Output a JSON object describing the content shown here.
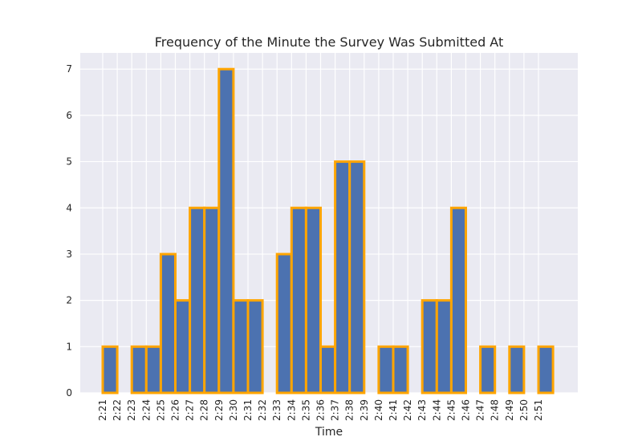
{
  "chart_data": {
    "type": "bar",
    "title": "Frequency of the Minute the Survey Was Submitted At",
    "xlabel": "Time",
    "ylabel": "",
    "categories": [
      "2:21",
      "2:22",
      "2:23",
      "2:24",
      "2:25",
      "2:26",
      "2:27",
      "2:28",
      "2:29",
      "2:30",
      "2:31",
      "2:32",
      "2:33",
      "2:34",
      "2:35",
      "2:36",
      "2:37",
      "2:38",
      "2:39",
      "2:40",
      "2:41",
      "2:42",
      "2:43",
      "2:44",
      "2:45",
      "2:46",
      "2:47",
      "2:48",
      "2:49",
      "2:50",
      "2:51"
    ],
    "values": [
      1,
      0,
      1,
      1,
      3,
      2,
      4,
      4,
      7,
      2,
      2,
      0,
      3,
      4,
      4,
      1,
      5,
      5,
      0,
      1,
      1,
      0,
      2,
      2,
      4,
      0,
      1,
      0,
      1,
      0,
      1
    ],
    "ylim": [
      0,
      7.35
    ],
    "yticks": [
      0,
      1,
      2,
      3,
      4,
      5,
      6,
      7
    ],
    "grid": true,
    "colors": {
      "bar_fill": "#4c72b0",
      "bar_edge": "#ffa500",
      "plot_background": "#eaeaf2",
      "grid": "#ffffff"
    }
  }
}
